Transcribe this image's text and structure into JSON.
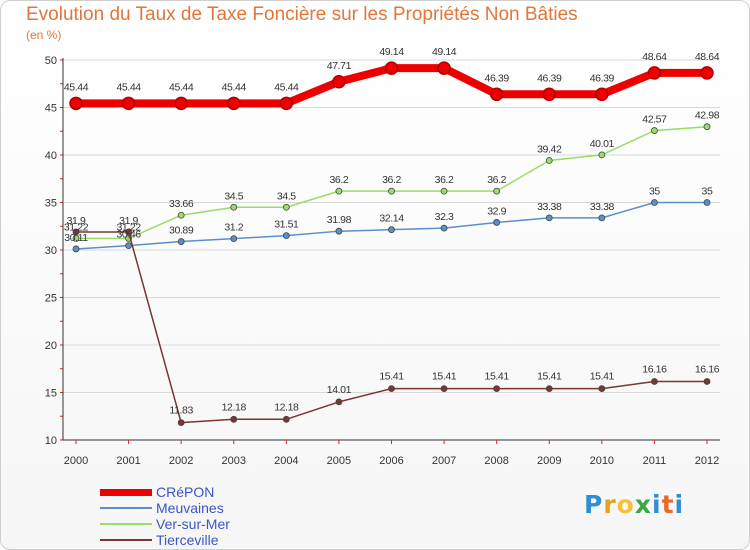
{
  "title": "Evolution du Taux de Taxe Foncière sur les Propriétés Non Bâties",
  "unit": "(en %)",
  "logo": {
    "letters": [
      "P",
      "r",
      "o",
      "x",
      "i",
      "t",
      "i"
    ],
    "colors": [
      "#2f8fd0",
      "#e8a020",
      "#f2c23a",
      "#3aa845",
      "#2f8fd0",
      "#e86a2a",
      "#2f8fd0"
    ]
  },
  "colors": {
    "axis": "#333333",
    "grid": "#d9d9d9",
    "tick_mark": "#e02020"
  },
  "chart_data": {
    "type": "line",
    "title": "Evolution du Taux de Taxe Foncière sur les Propriétés Non Bâties",
    "ylabel": "(en %)",
    "xlabel": "",
    "x": [
      "2000",
      "2001",
      "2002",
      "2003",
      "2004",
      "2005",
      "2006",
      "2007",
      "2008",
      "2009",
      "2010",
      "2011",
      "2012"
    ],
    "ylim": [
      10,
      50
    ],
    "yticks": [
      10,
      15,
      20,
      25,
      30,
      35,
      40,
      45,
      50
    ],
    "grid": true,
    "legend": "bottom-left",
    "series": [
      {
        "name": "CRéPON",
        "color": "#ee0000",
        "values": [
          45.44,
          45.44,
          45.44,
          45.44,
          45.44,
          47.71,
          49.14,
          49.14,
          46.39,
          46.39,
          46.39,
          48.64,
          48.64
        ],
        "labels": [
          "45.44",
          "45.44",
          "45.44",
          "45.44",
          "45.44",
          "47.71",
          "49.14",
          "49.14",
          "46.39",
          "46.39",
          "46.39",
          "48.64",
          "48.64"
        ]
      },
      {
        "name": "Meuvaines",
        "color": "#5a8fc8",
        "values": [
          30.11,
          30.46,
          30.89,
          31.2,
          31.51,
          31.98,
          32.14,
          32.3,
          32.9,
          33.38,
          33.38,
          35,
          35
        ],
        "labels": [
          "30.11",
          "30.46",
          "30.89",
          "31.2",
          "31.51",
          "31.98",
          "32.14",
          "32.3",
          "32.9",
          "33.38",
          "33.38",
          "35",
          "35"
        ]
      },
      {
        "name": "Ver-sur-Mer",
        "color": "#99dd66",
        "values": [
          31.22,
          31.22,
          33.66,
          34.5,
          34.5,
          36.2,
          36.2,
          36.2,
          36.2,
          39.42,
          40.01,
          42.57,
          42.98
        ],
        "labels": [
          "31.22",
          "31.22",
          "33.66",
          "34.5",
          "34.5",
          "36.2",
          "36.2",
          "36.2",
          "36.2",
          "39.42",
          "40.01",
          "42.57",
          "42.98"
        ]
      },
      {
        "name": "Tierceville",
        "color": "#7a3535",
        "values": [
          31.9,
          31.9,
          11.83,
          12.18,
          12.18,
          14.01,
          15.41,
          15.41,
          15.41,
          15.41,
          15.41,
          16.16,
          16.16
        ],
        "labels": [
          "31.9",
          "31.9",
          "11.83",
          "12.18",
          "12.18",
          "14.01",
          "15.41",
          "15.41",
          "15.41",
          "15.41",
          "15.41",
          "16.16",
          "16.16"
        ]
      }
    ]
  }
}
